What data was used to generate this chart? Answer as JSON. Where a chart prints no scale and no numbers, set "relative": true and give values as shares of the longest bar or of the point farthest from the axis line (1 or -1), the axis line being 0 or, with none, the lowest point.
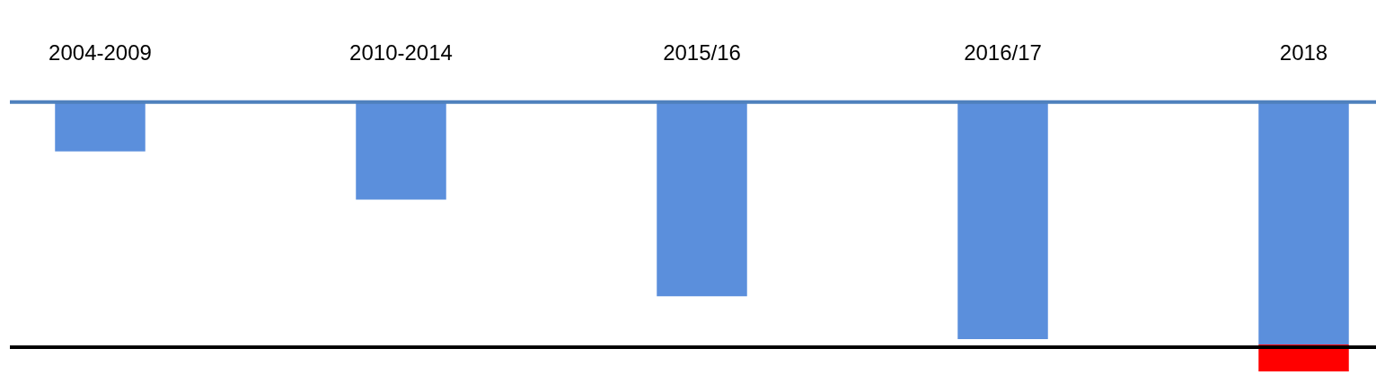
{
  "chart_data": {
    "type": "bar",
    "relative": true,
    "stacked": true,
    "grid": false,
    "categories": [
      "2004-2009",
      "2010-2014",
      "2015/16",
      "2016/17",
      "2018"
    ],
    "series": [
      {
        "color": "#5b8fdc",
        "values": [
          -0.18,
          -0.36,
          -0.72,
          -0.88,
          -0.9
        ]
      },
      {
        "color": "#ff0000",
        "values": [
          null,
          null,
          null,
          null,
          -0.1
        ]
      }
    ],
    "ref_lines": [
      {
        "axis": "y",
        "value": -0.91,
        "color": "#000000"
      }
    ]
  }
}
